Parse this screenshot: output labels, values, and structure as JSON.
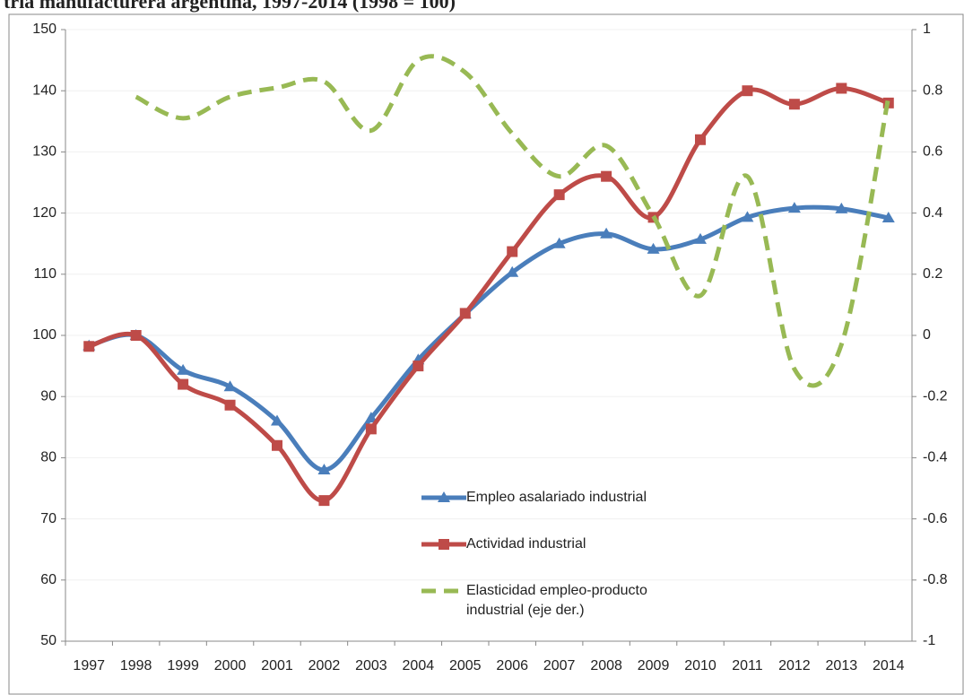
{
  "chart_data": {
    "type": "line",
    "title": "tría manufacturera argentina, 1997-2014 (1998 = 100)",
    "categories": [
      "1997",
      "1998",
      "1999",
      "2000",
      "2001",
      "2002",
      "2003",
      "2004",
      "2005",
      "2006",
      "2007",
      "2008",
      "2009",
      "2010",
      "2011",
      "2012",
      "2013",
      "2014"
    ],
    "series": [
      {
        "name": "Empleo asalariado industrial",
        "color": "#4a7ebb",
        "marker": "triangle",
        "values": [
          98.3,
          100,
          94.3,
          91.6,
          86,
          78,
          86.5,
          96,
          103.5,
          110.3,
          115,
          116.6,
          114.1,
          115.7,
          119.3,
          120.8,
          120.7,
          119.2
        ]
      },
      {
        "name": "Actividad industrial",
        "color": "#be4b48",
        "marker": "square",
        "values": [
          98.2,
          100,
          92,
          88.6,
          82,
          73,
          84.7,
          95,
          103.6,
          113.7,
          123,
          126,
          119.3,
          132,
          140,
          137.8,
          140.4,
          138
        ]
      },
      {
        "name": "Elasticidad empleo-producto industrial (eje der.)",
        "color": "#98b954",
        "dashed": true,
        "axis": "y2",
        "values": [
          null,
          0.78,
          0.71,
          0.78,
          0.81,
          0.83,
          0.67,
          0.9,
          0.86,
          0.66,
          0.52,
          0.62,
          0.39,
          0.13,
          0.52,
          -0.11,
          -0.03,
          0.78
        ]
      }
    ],
    "ylim": [
      50,
      150
    ],
    "yticks": [
      50,
      60,
      70,
      80,
      90,
      100,
      110,
      120,
      130,
      140,
      150
    ],
    "y2lim": [
      -1,
      1
    ],
    "y2ticks": [
      -1,
      -0.8,
      -0.6,
      -0.4,
      -0.2,
      0,
      0.2,
      0.4,
      0.6,
      0.8,
      1
    ],
    "grid": true,
    "smooth": true
  }
}
